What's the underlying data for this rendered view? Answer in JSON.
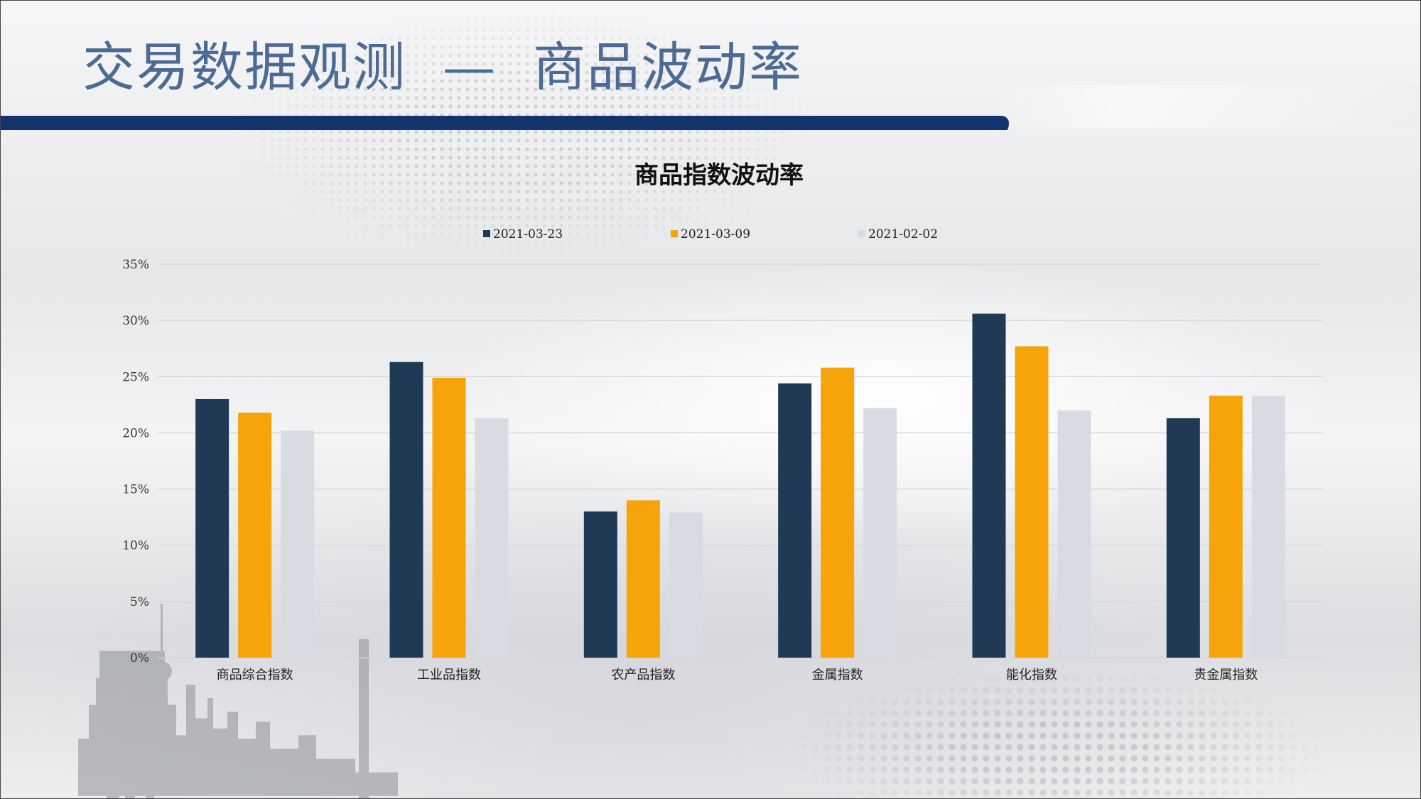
{
  "slide": {
    "title": "交易数据观测  —  商品波动率"
  },
  "colors": {
    "title_text": "#4c6b94",
    "header_bar": "#15336b"
  },
  "chart_data": {
    "type": "bar",
    "title": "商品指数波动率",
    "categories": [
      "商品综合指数",
      "工业品指数",
      "农产品指数",
      "金属指数",
      "能化指数",
      "贵金属指数"
    ],
    "series": [
      {
        "name": "2021-03-23",
        "color": "#203a56",
        "values": [
          23.0,
          26.3,
          13.0,
          24.4,
          30.6,
          21.3
        ]
      },
      {
        "name": "2021-03-09",
        "color": "#f7a30a",
        "values": [
          21.8,
          24.9,
          14.0,
          25.8,
          27.7,
          23.3
        ]
      },
      {
        "name": "2021-02-02",
        "color": "#d7dce3",
        "values": [
          20.2,
          21.3,
          12.9,
          22.2,
          22.0,
          23.3
        ]
      }
    ],
    "ylim": [
      0,
      35
    ],
    "yticks": [
      "0%",
      "5%",
      "10%",
      "15%",
      "20%",
      "25%",
      "30%",
      "35%"
    ],
    "xlabel": "",
    "ylabel": "",
    "legend_position": "top",
    "grid": true
  }
}
